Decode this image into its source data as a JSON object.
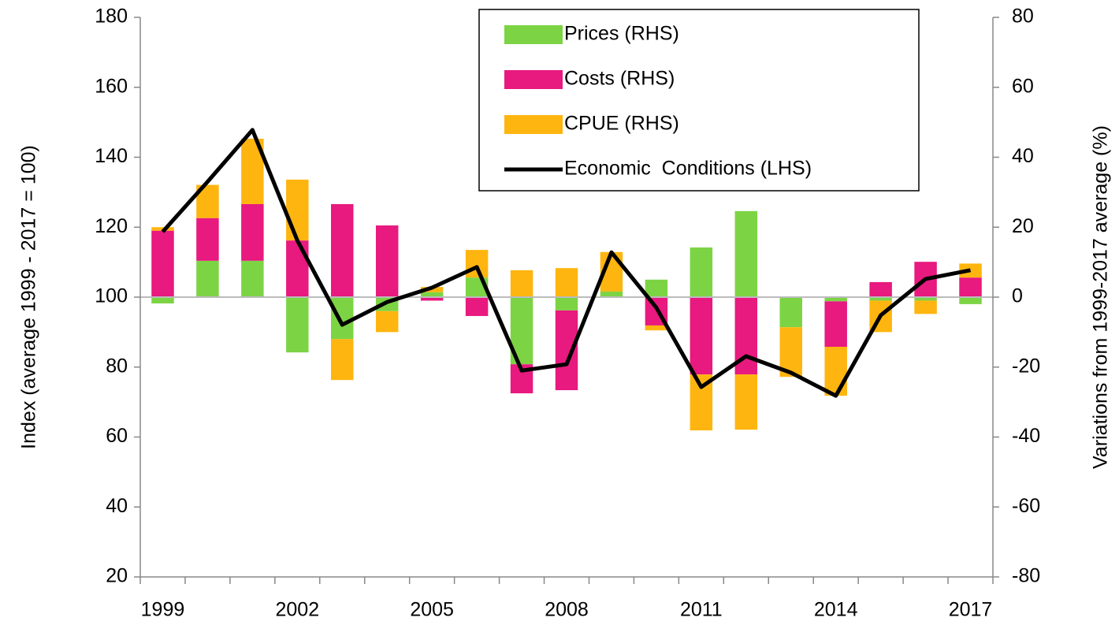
{
  "chart_data": {
    "type": "bar",
    "stacked": true,
    "y_label": "Index (average 1999 - 2017 = 100)",
    "y2_label": "Variations from 1999-2017 average (%)",
    "categories": [
      "1999",
      null,
      null,
      "2002",
      null,
      null,
      "2005",
      null,
      null,
      "2008",
      null,
      null,
      "2011",
      null,
      null,
      "2014",
      null,
      null,
      "2017"
    ],
    "ylim": [
      20,
      180
    ],
    "yticks": [
      20,
      40,
      60,
      80,
      100,
      120,
      140,
      160,
      180
    ],
    "y2lim": [
      -80,
      80
    ],
    "y2ticks": [
      -80,
      -60,
      -40,
      -20,
      0,
      20,
      40,
      60,
      80
    ],
    "legend": "upper right",
    "series": [
      {
        "name": "Prices (RHS)",
        "color": "#7cd444",
        "axis": "y2",
        "values": [
          -1.8,
          10.4,
          10.4,
          -15.8,
          -12,
          -4,
          1.4,
          5.6,
          -19.2,
          -3.8,
          1.6,
          5,
          14.2,
          24.6,
          -8.6,
          -1.2,
          -1,
          -1,
          -2
        ]
      },
      {
        "name": "Costs (RHS)",
        "color": "#e8197f",
        "axis": "y2",
        "values": [
          19,
          12.2,
          16.2,
          16.2,
          26.6,
          20.5,
          -1,
          -5.4,
          -8.3,
          -22.8,
          0,
          -8.1,
          -22.1,
          -22.1,
          0,
          -13,
          4.3,
          10.1,
          5.6
        ]
      },
      {
        "name": "CPUE (RHS)",
        "color": "#ffb50f",
        "axis": "y2",
        "values": [
          1,
          9.5,
          18.7,
          17.4,
          -11.7,
          -6,
          1.5,
          7.9,
          7.7,
          8.3,
          11.3,
          -1.4,
          -16,
          -15.8,
          -14.2,
          -14,
          -9,
          -3.8,
          4
        ]
      },
      {
        "name": "Economic  Conditions (LHS)",
        "color": "#000000",
        "type": "line",
        "values": [
          118.7,
          133,
          147.8,
          116.2,
          92.1,
          98.6,
          102.7,
          108.6,
          79,
          80.8,
          112.8,
          97,
          74.3,
          83.1,
          78.4,
          71.8,
          94.8,
          105.2,
          107.7
        ]
      }
    ]
  }
}
